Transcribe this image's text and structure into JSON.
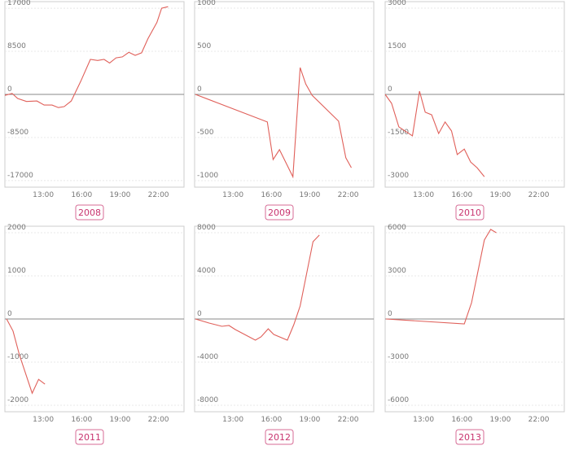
{
  "chart_data": [
    {
      "type": "line",
      "title": "2008",
      "color": "#e0605a",
      "x": [
        "10:00",
        "10:34",
        "11:00",
        "11:41",
        "12:30",
        "13:04",
        "13:41",
        "14:11",
        "14:38",
        "15:11",
        "15:56",
        "16:41",
        "17:15",
        "17:45",
        "18:11",
        "18:41",
        "19:11",
        "19:41",
        "20:11",
        "20:41",
        "21:11",
        "21:53",
        "22:15",
        "22:45"
      ],
      "values": [
        -200,
        200,
        -800,
        -1400,
        -1300,
        -2100,
        -2100,
        -2600,
        -2400,
        -1300,
        2600,
        6900,
        6700,
        6900,
        6200,
        7200,
        7400,
        8300,
        7700,
        8200,
        11000,
        14200,
        17000,
        17300
      ],
      "xlim": [
        "10:00",
        "24:00"
      ],
      "ylim": [
        -18300,
        18300
      ],
      "xticks": [
        "13:00",
        "16:00",
        "19:00",
        "22:00"
      ],
      "yticks": [
        17000,
        8500,
        0,
        -8500,
        -17000
      ]
    },
    {
      "type": "line",
      "title": "2009",
      "color": "#e0605a",
      "x": [
        "10:04",
        "15:41",
        "16:08",
        "16:38",
        "17:41",
        "18:15",
        "18:41",
        "19:11",
        "21:15",
        "21:49",
        "22:15"
      ],
      "values": [
        0,
        -320,
        -755,
        -640,
        -955,
        310,
        120,
        -10,
        -310,
        -735,
        -850
      ],
      "xlim": [
        "10:00",
        "24:00"
      ],
      "ylim": [
        -1075,
        1075
      ],
      "xticks": [
        "13:00",
        "16:00",
        "19:00",
        "22:00"
      ],
      "yticks": [
        1000,
        500,
        0,
        -500,
        -1000
      ]
    },
    {
      "type": "line",
      "title": "2010",
      "color": "#e0605a",
      "x": [
        "10:00",
        "10:30",
        "11:04",
        "12:08",
        "12:41",
        "13:08",
        "13:38",
        "14:11",
        "14:41",
        "15:11",
        "15:38",
        "16:11",
        "16:41",
        "17:11",
        "17:45"
      ],
      "values": [
        0,
        -310,
        -1130,
        -1440,
        110,
        -620,
        -710,
        -1360,
        -960,
        -1270,
        -2090,
        -1900,
        -2350,
        -2550,
        -2860
      ],
      "xlim": [
        "10:00",
        "24:00"
      ],
      "ylim": [
        -3225,
        3225
      ],
      "xticks": [
        "13:00",
        "16:00",
        "19:00",
        "22:00"
      ],
      "yticks": [
        3000,
        1500,
        0,
        -1500,
        -3000
      ]
    },
    {
      "type": "line",
      "title": "2011",
      "color": "#e0605a",
      "x": [
        "10:08",
        "10:38",
        "11:08",
        "12:08",
        "12:38",
        "13:08"
      ],
      "values": [
        0,
        -280,
        -830,
        -1720,
        -1400,
        -1510
      ],
      "xlim": [
        "10:00",
        "24:00"
      ],
      "ylim": [
        -2150,
        2150
      ],
      "xticks": [
        "13:00",
        "16:00",
        "19:00",
        "22:00"
      ],
      "yticks": [
        2000,
        1000,
        0,
        -1000,
        -2000
      ]
    },
    {
      "type": "line",
      "title": "2012",
      "color": "#e0605a",
      "x": [
        "10:04",
        "11:08",
        "12:08",
        "12:41",
        "13:11",
        "14:45",
        "15:11",
        "15:45",
        "16:11",
        "17:15",
        "17:45",
        "18:15",
        "19:15",
        "19:45"
      ],
      "values": [
        0,
        -380,
        -680,
        -600,
        -980,
        -1960,
        -1660,
        -910,
        -1430,
        -1960,
        -530,
        1210,
        7170,
        7780
      ],
      "xlim": [
        "10:00",
        "24:00"
      ],
      "ylim": [
        -8600,
        8600
      ],
      "xticks": [
        "13:00",
        "16:00",
        "19:00",
        "22:00"
      ],
      "yticks": [
        8000,
        4000,
        0,
        -4000,
        -8000
      ]
    },
    {
      "type": "line",
      "title": "2013",
      "color": "#e0605a",
      "x": [
        "10:04",
        "16:11",
        "16:45",
        "17:45",
        "18:15",
        "18:41"
      ],
      "values": [
        0,
        -340,
        1130,
        5490,
        6230,
        6000
      ],
      "xlim": [
        "10:00",
        "24:00"
      ],
      "ylim": [
        -6450,
        6450
      ],
      "xticks": [
        "13:00",
        "16:00",
        "19:00",
        "22:00"
      ],
      "yticks": [
        6000,
        3000,
        0,
        -3000,
        -6000
      ]
    }
  ]
}
